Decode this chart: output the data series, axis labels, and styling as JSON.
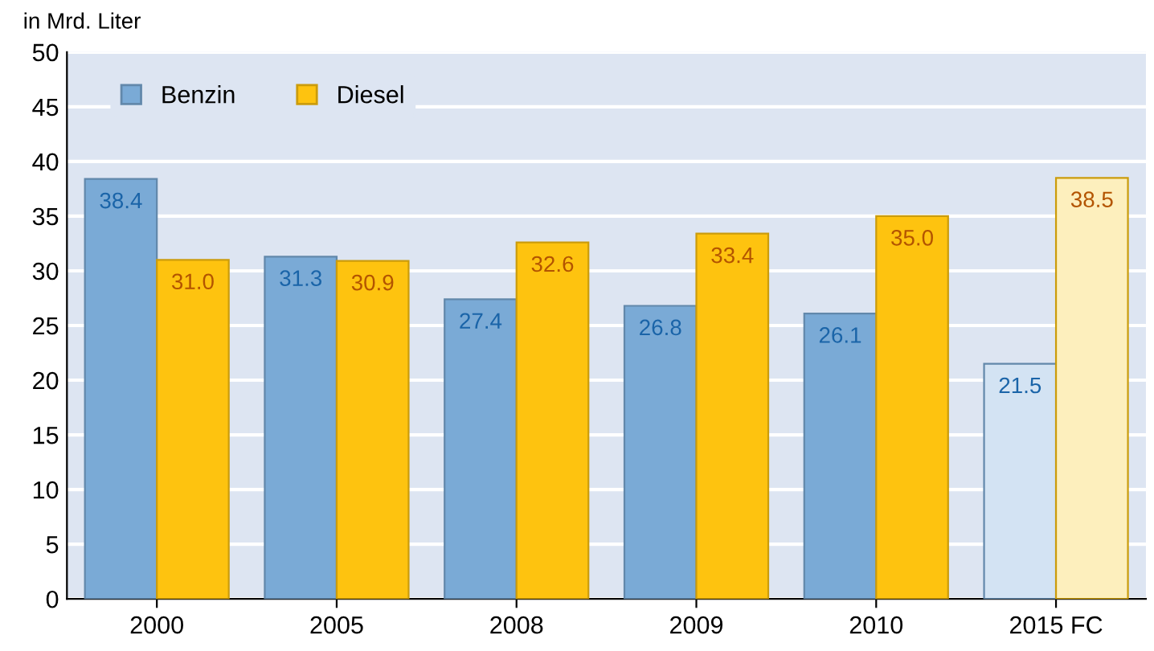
{
  "chart_data": {
    "type": "bar",
    "ylabel": "in Mrd. Liter",
    "categories": [
      "2000",
      "2005",
      "2008",
      "2009",
      "2010",
      "2015 FC"
    ],
    "series": [
      {
        "name": "Benzin",
        "color": "#7aaad6",
        "colors": [
          "#7aaad6",
          "#7aaad6",
          "#7aaad6",
          "#7aaad6",
          "#7aaad6",
          "#d3e3f3"
        ],
        "values": [
          38.4,
          31.3,
          27.4,
          26.8,
          26.1,
          21.5
        ],
        "value_labels": [
          "38.4",
          "31.3",
          "27.4",
          "26.8",
          "26.1",
          "21.5"
        ]
      },
      {
        "name": "Diesel",
        "color": "#fec30f",
        "colors": [
          "#fec30f",
          "#fec30f",
          "#fec30f",
          "#fec30f",
          "#fec30f",
          "#fdefbd"
        ],
        "values": [
          31.0,
          30.9,
          32.6,
          33.4,
          35.0,
          38.5
        ],
        "value_labels": [
          "31.0",
          "30.9",
          "32.6",
          "33.4",
          "35.0",
          "38.5"
        ]
      }
    ],
    "ylim": [
      0,
      50
    ],
    "yticks": [
      0,
      5,
      10,
      15,
      20,
      25,
      30,
      35,
      40,
      45,
      50
    ],
    "grid": "y",
    "legend": "top left"
  }
}
